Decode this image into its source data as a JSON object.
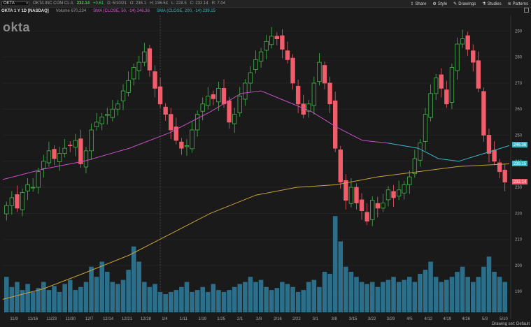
{
  "header": {
    "symbol": "OKTA",
    "company": "OKTA INC COM CL A",
    "price": "232.14",
    "change": "+0.61",
    "date": "D: 5/10/21",
    "open": "O: 236.1",
    "high": "H: 236.54",
    "low": "L: 228.5",
    "close": "C: 232.14",
    "r": "R: 7.04",
    "buttons": [
      "Share",
      "Style",
      "Drawings",
      "Studies",
      "Patterns"
    ]
  },
  "subheader": {
    "title": "OKTA 1 Y 1D [NASDAQ]",
    "volume_label": "Volume",
    "volume_value": "670,234",
    "sma1_label": "SMA (CLOSE, 50, -14)",
    "sma1_value": "246.36",
    "sma2_label": "SMA (CLOSE, 200, -14)",
    "sma2_value": "239.15"
  },
  "logo_text": "okta",
  "footer_text": "Drawing set: Default",
  "colors": {
    "up": "#43b94c",
    "down": "#f15d6a",
    "volume": "#2b6f8a",
    "sma50": "#c94fc7",
    "sma200": "#c8a23a",
    "sma_short": "#37b8c8",
    "bg": "#1a1a1a",
    "grid": "#2a2a2a"
  },
  "chart_data": {
    "type": "candlestick",
    "title": "OKTA 1 Y 1D [NASDAQ]",
    "ylim": [
      182,
      296
    ],
    "y_ticks": [
      190,
      200,
      210,
      220,
      230,
      240,
      250,
      260,
      270,
      280,
      290
    ],
    "x_tick_labels": [
      "11/9",
      "11/16",
      "11/23",
      "11/30",
      "12/7",
      "12/14",
      "12/21",
      "12/28",
      "1/4",
      "1/11",
      "1/19",
      "1/25",
      "2/1",
      "2/8",
      "2/16",
      "2/22",
      "3/1",
      "3/8",
      "3/15",
      "3/22",
      "3/29",
      "4/5",
      "4/12",
      "4/19",
      "4/26",
      "5/3",
      "5/10"
    ],
    "price_tags": [
      {
        "value": 246.36,
        "color": "#37b8c8"
      },
      {
        "value": 239.15,
        "color": "#37b8c8"
      },
      {
        "value": 232.14,
        "color": "#f15d6a"
      }
    ],
    "closes": [
      223,
      226,
      222,
      228,
      231,
      230,
      236,
      240,
      244,
      241,
      243,
      245,
      246,
      248,
      239,
      244,
      252,
      255,
      257,
      258,
      260,
      262,
      267,
      271,
      276,
      278,
      282,
      275,
      268,
      262,
      258,
      252,
      248,
      245,
      246,
      252,
      258,
      262,
      265,
      264,
      268,
      262,
      255,
      258,
      265,
      270,
      274,
      279,
      282,
      286,
      288,
      287,
      283,
      279,
      270,
      262,
      258,
      262,
      270,
      278,
      270,
      262,
      245,
      232,
      225,
      230,
      224,
      221,
      217,
      225,
      222,
      224,
      229,
      226,
      229,
      231,
      234,
      241,
      247,
      258,
      266,
      272,
      268,
      262,
      276,
      285,
      287,
      283,
      278,
      268,
      250,
      243,
      240,
      236,
      232
    ],
    "sma50": [
      {
        "t": 0.0,
        "v": 233
      },
      {
        "t": 0.08,
        "v": 237
      },
      {
        "t": 0.16,
        "v": 240
      },
      {
        "t": 0.25,
        "v": 245
      },
      {
        "t": 0.33,
        "v": 251
      },
      {
        "t": 0.41,
        "v": 259
      },
      {
        "t": 0.47,
        "v": 266
      },
      {
        "t": 0.51,
        "v": 267
      },
      {
        "t": 0.56,
        "v": 263
      },
      {
        "t": 0.61,
        "v": 259
      },
      {
        "t": 0.66,
        "v": 253
      },
      {
        "t": 0.71,
        "v": 248
      },
      {
        "t": 0.76,
        "v": 247
      },
      {
        "t": 0.82,
        "v": 245
      },
      {
        "t": 0.86,
        "v": 241
      },
      {
        "t": 0.9,
        "v": 240
      },
      {
        "t": 0.95,
        "v": 243
      },
      {
        "t": 1.0,
        "v": 246
      }
    ],
    "sma200": [
      {
        "t": 0.0,
        "v": 187
      },
      {
        "t": 0.08,
        "v": 191
      },
      {
        "t": 0.16,
        "v": 197
      },
      {
        "t": 0.25,
        "v": 204
      },
      {
        "t": 0.33,
        "v": 212
      },
      {
        "t": 0.41,
        "v": 220
      },
      {
        "t": 0.5,
        "v": 227
      },
      {
        "t": 0.58,
        "v": 230
      },
      {
        "t": 0.66,
        "v": 231
      },
      {
        "t": 0.74,
        "v": 234
      },
      {
        "t": 0.82,
        "v": 236
      },
      {
        "t": 0.9,
        "v": 238
      },
      {
        "t": 1.0,
        "v": 239
      }
    ],
    "volume_rel": [
      0.35,
      0.25,
      0.3,
      0.22,
      0.28,
      0.2,
      0.24,
      0.3,
      0.22,
      0.26,
      0.2,
      0.28,
      0.32,
      0.22,
      0.25,
      0.3,
      0.45,
      0.35,
      0.5,
      0.4,
      0.3,
      0.28,
      0.32,
      0.42,
      0.65,
      0.5,
      0.3,
      0.25,
      0.28,
      0.2,
      0.18,
      0.2,
      0.22,
      0.25,
      0.3,
      0.2,
      0.22,
      0.25,
      0.2,
      0.28,
      0.22,
      0.2,
      0.22,
      0.25,
      0.28,
      0.3,
      0.35,
      0.3,
      0.32,
      0.25,
      0.22,
      0.24,
      0.3,
      0.28,
      0.25,
      0.2,
      0.22,
      0.3,
      0.32,
      0.25,
      0.4,
      0.38,
      0.95,
      0.7,
      0.45,
      0.4,
      0.35,
      0.3,
      0.28,
      0.3,
      0.25,
      0.3,
      0.32,
      0.35,
      0.3,
      0.32,
      0.35,
      0.3,
      0.38,
      0.42,
      0.5,
      0.35,
      0.3,
      0.32,
      0.35,
      0.4,
      0.45,
      0.35,
      0.3,
      0.35,
      0.45,
      0.55,
      0.4,
      0.35,
      0.3
    ]
  }
}
